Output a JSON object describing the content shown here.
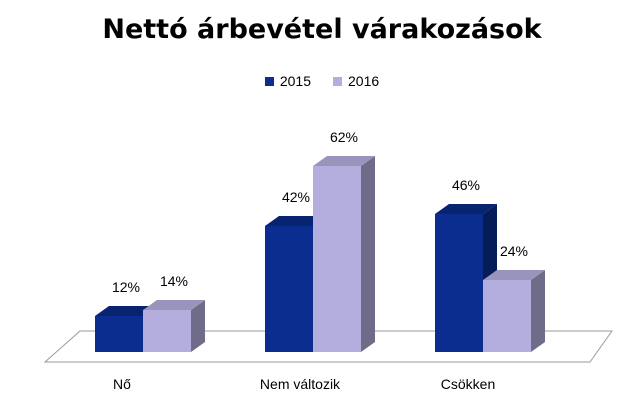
{
  "chart_data": {
    "type": "bar",
    "title": "Nettó árbevétel várakozások",
    "categories": [
      "Nő",
      "Nem változik",
      "Csökken"
    ],
    "series": [
      {
        "name": "2015",
        "values": [
          12,
          42,
          46
        ],
        "labels": [
          "12%",
          "42%",
          "46%"
        ],
        "color": "#0A2D8F"
      },
      {
        "name": "2016",
        "values": [
          14,
          62,
          24
        ],
        "labels": [
          "14%",
          "62%",
          "24%"
        ],
        "color": "#B3AEDD"
      }
    ],
    "ylim": [
      0,
      70
    ],
    "value_suffix": "%",
    "legend_position": "top",
    "style": "3d-column"
  }
}
